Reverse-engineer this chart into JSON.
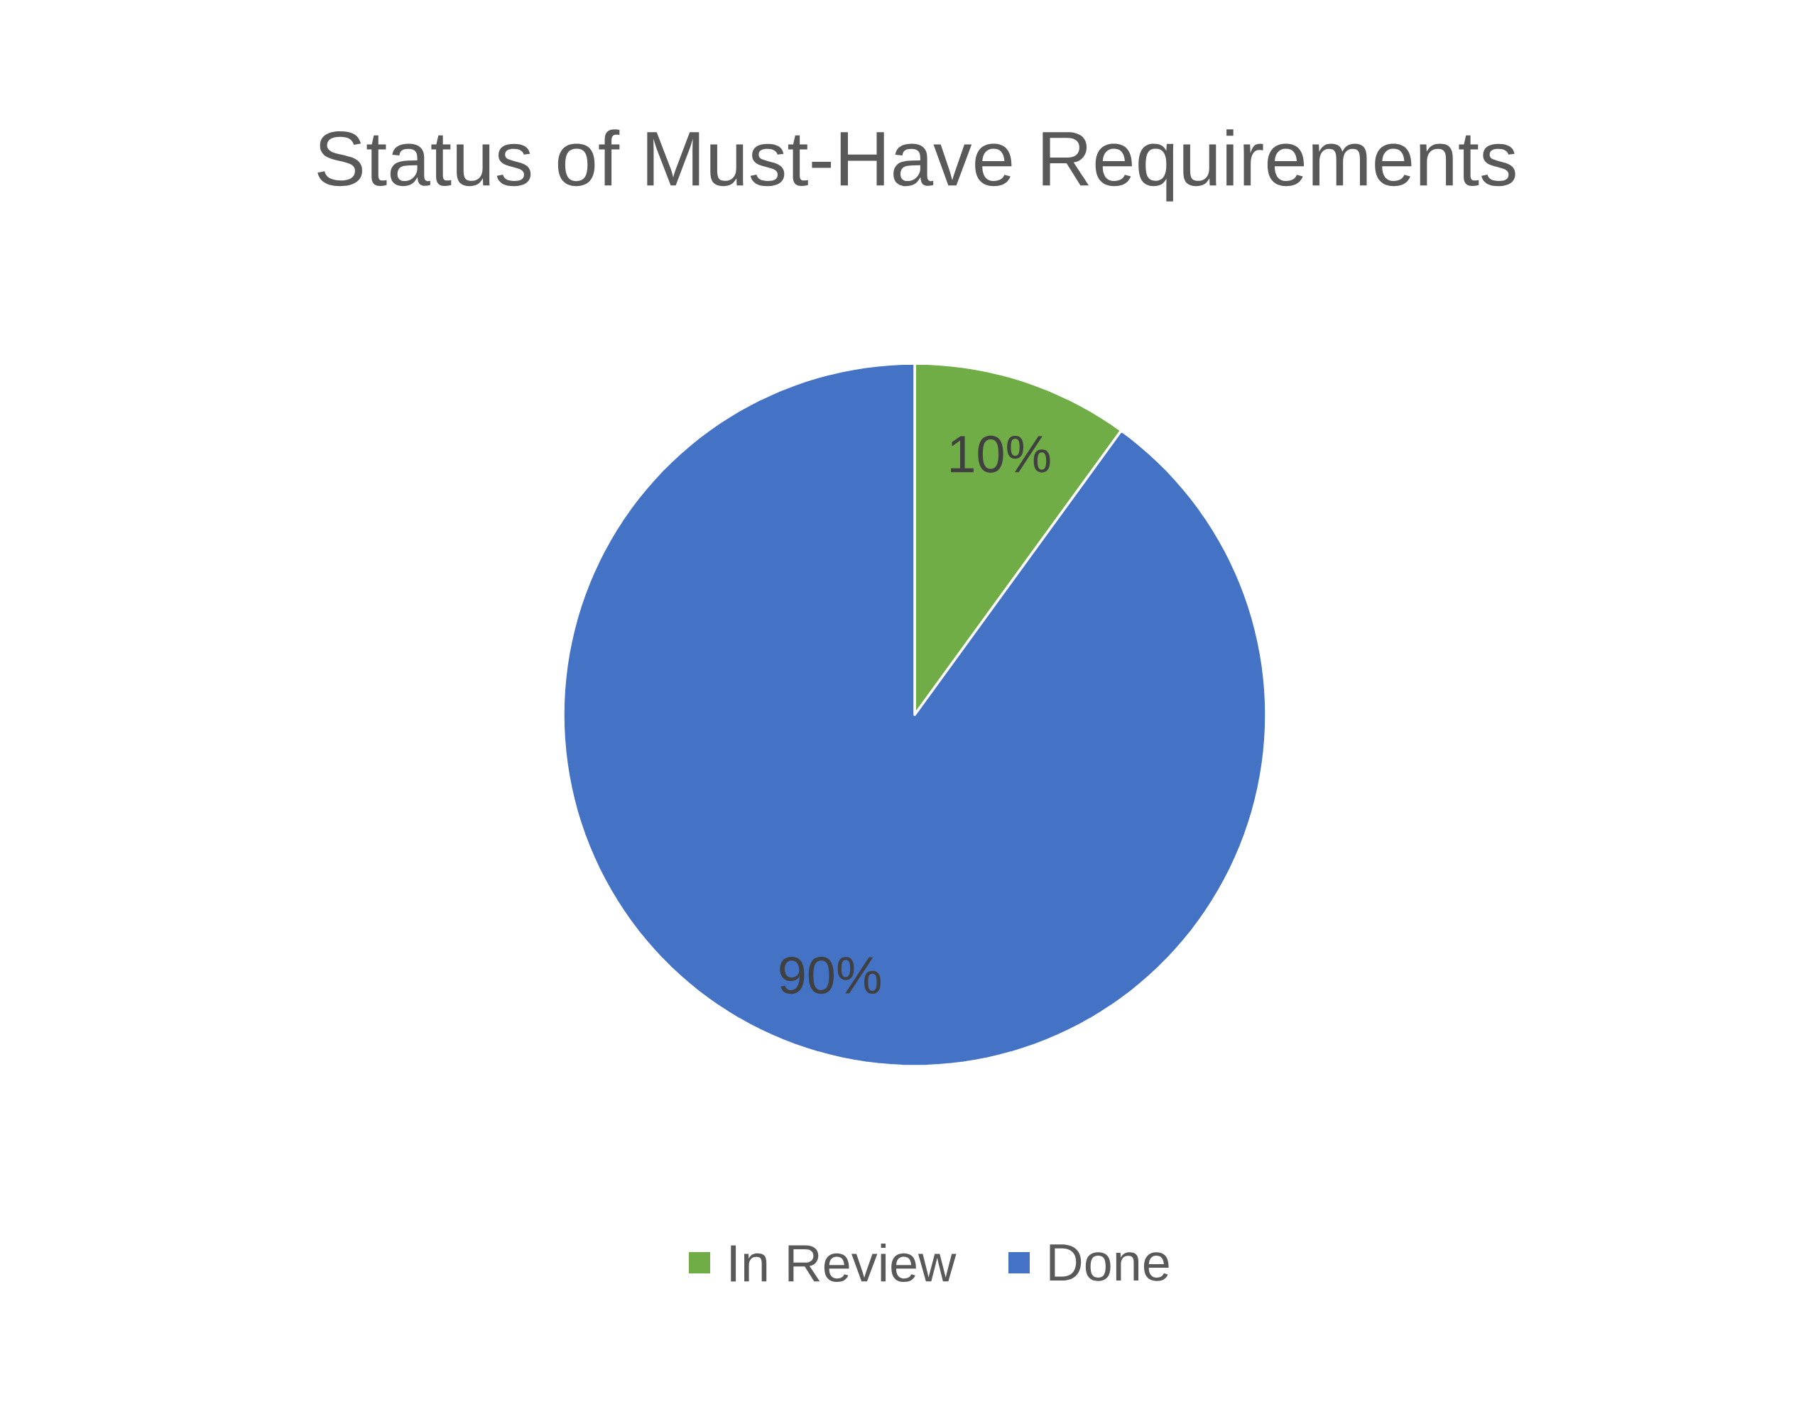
{
  "chart_data": {
    "type": "pie",
    "title": "Status of Must-Have Requirements",
    "categories": [
      "In Review",
      "Done"
    ],
    "values": [
      10,
      90
    ],
    "colors": [
      "#70ad47",
      "#4472c4"
    ],
    "value_labels": [
      "10%",
      "90%"
    ],
    "legend": "bottom"
  }
}
